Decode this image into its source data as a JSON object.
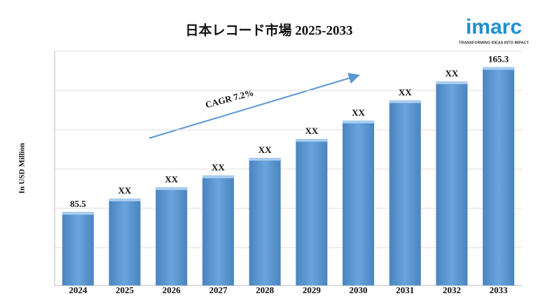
{
  "chart_data": {
    "type": "bar",
    "title": "日本レコード市場 2025-2033",
    "y_label": "In USD Million",
    "annotation": "CAGR 7.2%",
    "categories": [
      "2024",
      "2025",
      "2026",
      "2027",
      "2028",
      "2029",
      "2030",
      "2031",
      "2032",
      "2033"
    ],
    "values": [
      85.5,
      92.9,
      99.1,
      105.6,
      115.3,
      125.7,
      135.8,
      147.0,
      157.4,
      165.3
    ],
    "value_labels": [
      "85.5",
      "XX",
      "XX",
      "XX",
      "XX",
      "XX",
      "XX",
      "XX",
      "XX",
      "165.3"
    ],
    "color": "#5b97d1",
    "ylim": [
      45,
      174
    ],
    "grid": true
  },
  "logo": {
    "name": "imarc",
    "tagline": "TRANSFORMING IDEAS INTO IMPACT"
  }
}
